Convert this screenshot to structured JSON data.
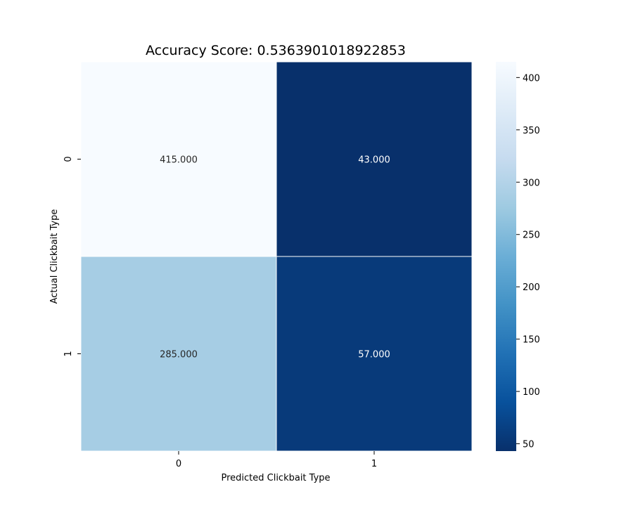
{
  "chart_data": {
    "type": "heatmap",
    "title": "Accuracy Score: 0.5363901018922853",
    "xlabel": "Predicted Clickbait Type",
    "ylabel": "Actual Clickbait Type",
    "x_categories": [
      "0",
      "1"
    ],
    "y_categories": [
      "0",
      "1"
    ],
    "values": [
      [
        415,
        43
      ],
      [
        285,
        57
      ]
    ],
    "annotations": [
      [
        "415.000",
        "43.000"
      ],
      [
        "285.000",
        "57.000"
      ]
    ],
    "colormap": "Blues_r",
    "colorbar": {
      "range": [
        43,
        415
      ],
      "ticks": [
        50,
        100,
        150,
        200,
        250,
        300,
        350,
        400
      ],
      "tick_labels": [
        "50",
        "100",
        "150",
        "200",
        "250",
        "300",
        "350",
        "400"
      ]
    }
  }
}
